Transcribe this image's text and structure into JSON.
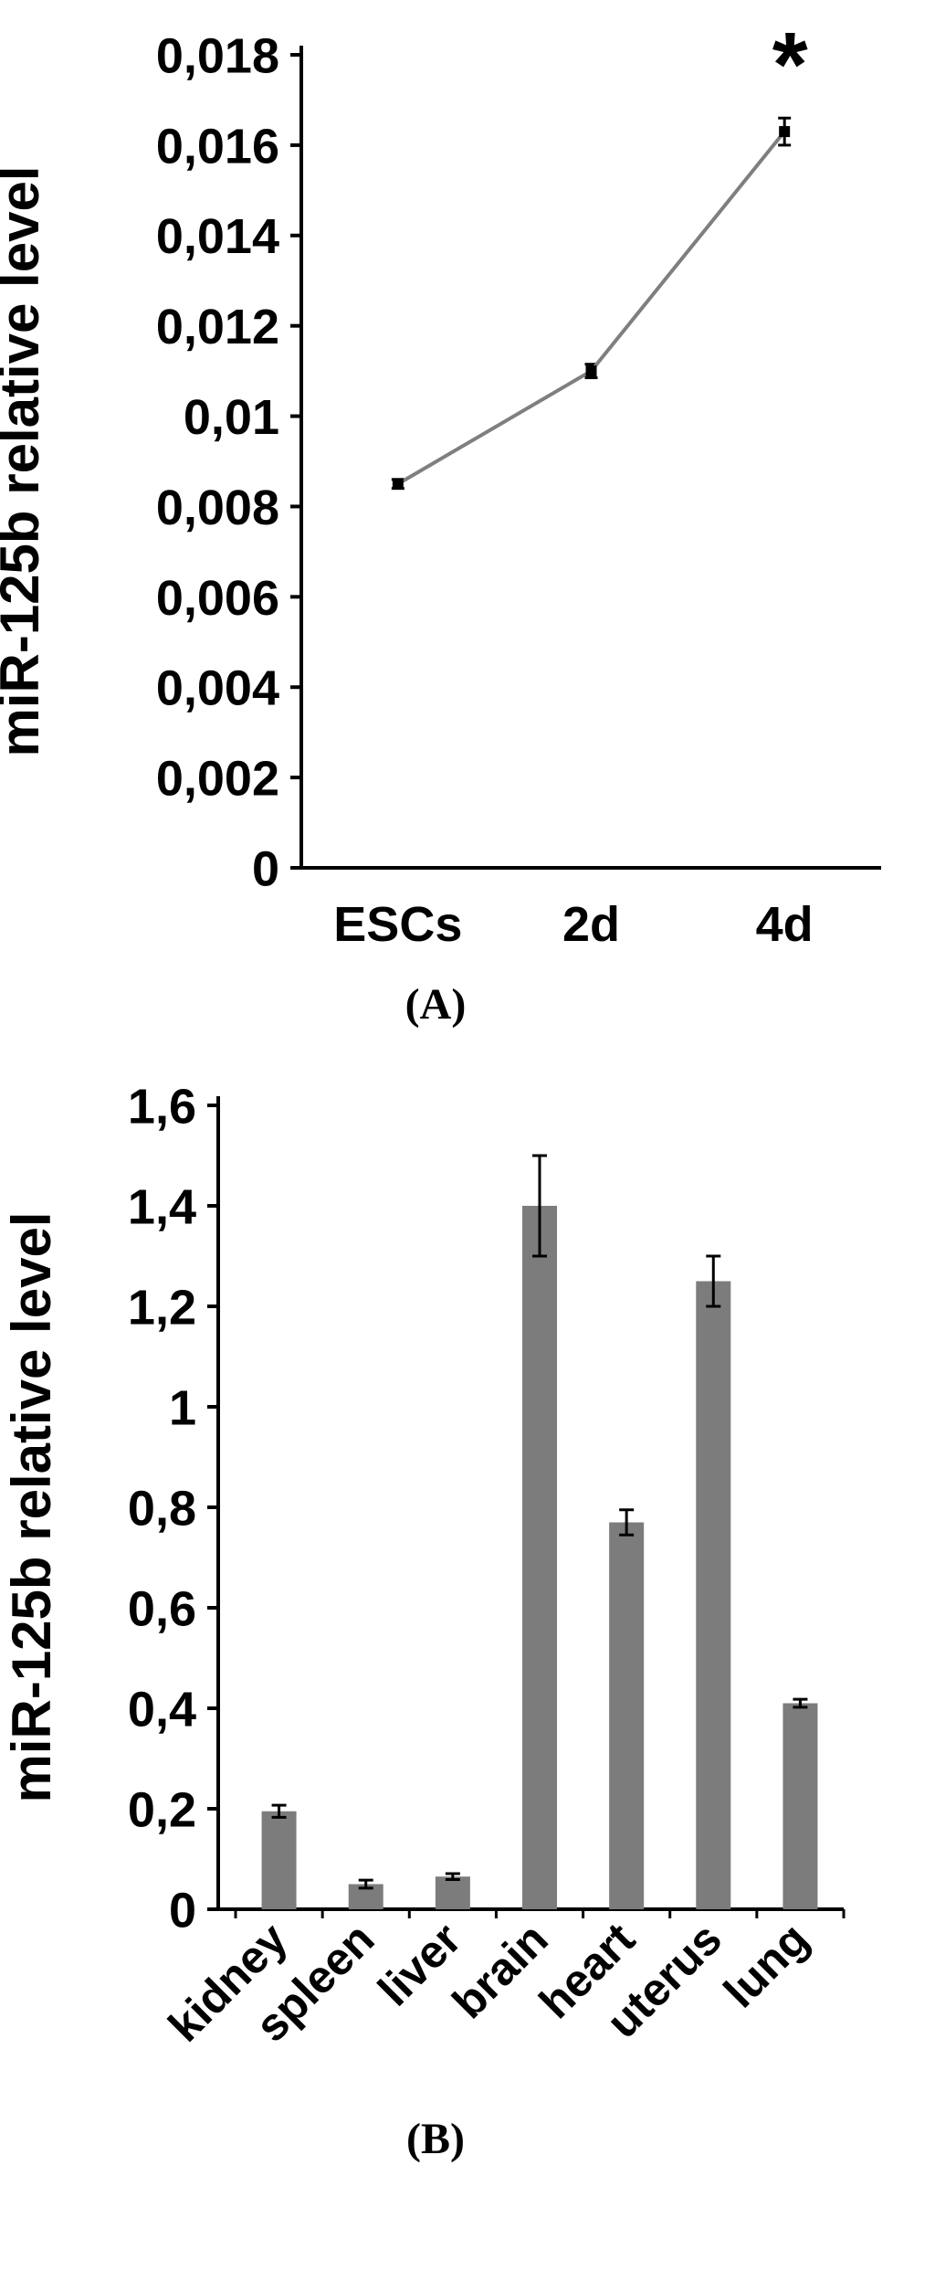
{
  "figure": {
    "panel_a_label": "(A)",
    "panel_b_label": "(B)"
  },
  "chart_data": [
    {
      "panel": "A",
      "type": "line",
      "title": "",
      "ylabel": "miR-125b relative level",
      "xlabel": "",
      "categories": [
        "ESCs",
        "2d",
        "4d"
      ],
      "values": [
        0.0085,
        0.011,
        0.0163
      ],
      "error": [
        0.0001,
        0.00015,
        0.0003
      ],
      "ylim": [
        0,
        0.018
      ],
      "ytick_labels": [
        "0",
        "0,002",
        "0,004",
        "0,006",
        "0,008",
        "0,01",
        "0,012",
        "0,014",
        "0,016",
        "0,018"
      ],
      "annotation": {
        "text": "*",
        "x_index": 2
      },
      "line_color": "#7f7f7f",
      "marker": "square",
      "marker_color": "#000000",
      "grid": false,
      "legend": "none"
    },
    {
      "panel": "B",
      "type": "bar",
      "title": "",
      "ylabel": "miR-125b relative level",
      "xlabel": "",
      "categories": [
        "kidney",
        "spleen",
        "liver",
        "brain",
        "heart",
        "uterus",
        "lung"
      ],
      "values": [
        0.195,
        0.05,
        0.065,
        1.4,
        0.77,
        1.25,
        0.41
      ],
      "error": [
        0.012,
        0.008,
        0.006,
        0.1,
        0.025,
        0.05,
        0.008
      ],
      "ylim": [
        0,
        1.6
      ],
      "ytick_labels": [
        "0",
        "0,2",
        "0,4",
        "0,6",
        "0,8",
        "1",
        "1,2",
        "1,4",
        "1,6"
      ],
      "bar_color": "#7c7c7c",
      "grid": false,
      "legend": "none"
    }
  ]
}
